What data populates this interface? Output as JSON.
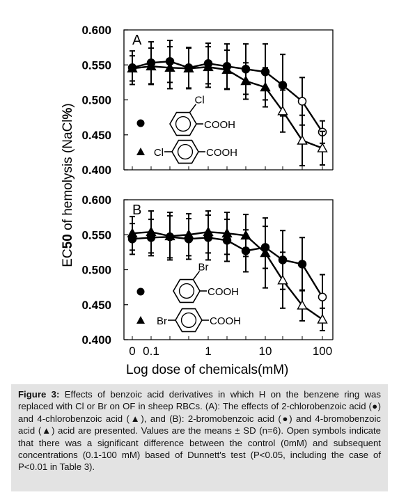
{
  "y_axis_label": "EC50 of hemolysis (NaCl%)",
  "y_axis_label_parts": {
    "pre": "EC",
    "bold": "50",
    "mid": " of hemolysis (NaCl",
    "bold2": "%",
    "post": ")"
  },
  "x_axis_label": "Log dose of chemicals(mM)",
  "x_tick_labels": [
    "0",
    "0.1",
    "1",
    "10",
    "100"
  ],
  "caption": {
    "label": "Figure 3:",
    "text": " Effects of benzoic acid derivatives in which H on the benzene ring was replaced with Cl or Br on OF in sheep RBCs. (A): The effects of 2-chlorobenzoic acid (●) and 4-chlorobenzoic acid (▲), and (B): 2-bromobenzoic acid (●) and 4-bromobenzoic acid (▲) acid are presented. Values are the means ± SD (n=6). Open symbols indicate that there was a significant difference between the control (0mM) and subsequent concentrations (0.1-100 mM) based of Dunnett's test (P<0.05, including the case of P<0.01 in Table 3)."
  },
  "chart_data": [
    {
      "type": "line",
      "panel_label": "A",
      "x": [
        0,
        0.1,
        0.2,
        0.5,
        1,
        2,
        5,
        10,
        20,
        50,
        100
      ],
      "ylim": [
        0.4,
        0.6
      ],
      "y_ticks": [
        "0.400",
        "0.450",
        "0.500",
        "0.550",
        "0.600"
      ],
      "series": [
        {
          "marker": "circle",
          "substituent": "Cl",
          "substituent_position": "ortho",
          "values": [
            0.546,
            0.553,
            0.555,
            0.546,
            0.552,
            0.548,
            0.544,
            0.54,
            0.521,
            0.498,
            0.454
          ],
          "errors": [
            0.024,
            0.03,
            0.03,
            0.029,
            0.029,
            0.032,
            0.036,
            0.04,
            0.044,
            0.034,
            0.016
          ],
          "significant": [
            false,
            false,
            false,
            false,
            false,
            false,
            false,
            false,
            false,
            true,
            true
          ]
        },
        {
          "marker": "triangle",
          "substituent": "Cl",
          "substituent_position": "para",
          "values": [
            0.545,
            0.548,
            0.546,
            0.545,
            0.547,
            0.543,
            0.527,
            0.518,
            0.484,
            0.442,
            0.431
          ],
          "errors": [
            0.018,
            0.026,
            0.03,
            0.029,
            0.029,
            0.028,
            0.026,
            0.028,
            0.03,
            0.036,
            0.024
          ],
          "significant": [
            false,
            false,
            false,
            false,
            false,
            false,
            false,
            false,
            true,
            true,
            true
          ]
        }
      ],
      "structures": [
        {
          "marker": "circle",
          "substituent": "Cl",
          "group": "COOH"
        },
        {
          "marker": "triangle",
          "substituent": "Cl",
          "group": "COOH"
        }
      ]
    },
    {
      "type": "line",
      "panel_label": "B",
      "x": [
        0,
        0.1,
        0.2,
        0.5,
        1,
        2,
        5,
        10,
        20,
        50,
        100
      ],
      "ylim": [
        0.4,
        0.6
      ],
      "y_ticks": [
        "0.400",
        "0.450",
        "0.500",
        "0.550",
        "0.600"
      ],
      "series": [
        {
          "marker": "circle",
          "substituent": "Br",
          "substituent_position": "ortho",
          "values": [
            0.544,
            0.546,
            0.547,
            0.544,
            0.546,
            0.542,
            0.527,
            0.532,
            0.514,
            0.508,
            0.461
          ],
          "errors": [
            0.022,
            0.026,
            0.03,
            0.029,
            0.032,
            0.03,
            0.03,
            0.03,
            0.042,
            0.038,
            0.032
          ],
          "significant": [
            false,
            false,
            false,
            false,
            false,
            false,
            false,
            false,
            false,
            false,
            true
          ]
        },
        {
          "marker": "triangle",
          "substituent": "Br",
          "substituent_position": "para",
          "values": [
            0.552,
            0.554,
            0.548,
            0.55,
            0.554,
            0.552,
            0.549,
            0.524,
            0.485,
            0.449,
            0.429
          ],
          "errors": [
            0.024,
            0.03,
            0.034,
            0.03,
            0.03,
            0.03,
            0.03,
            0.05,
            0.04,
            0.022,
            0.016
          ],
          "significant": [
            false,
            false,
            false,
            false,
            false,
            false,
            false,
            false,
            true,
            true,
            true
          ]
        }
      ],
      "structures": [
        {
          "marker": "circle",
          "substituent": "Br",
          "group": "COOH"
        },
        {
          "marker": "triangle",
          "substituent": "Br",
          "group": "COOH"
        }
      ]
    }
  ]
}
